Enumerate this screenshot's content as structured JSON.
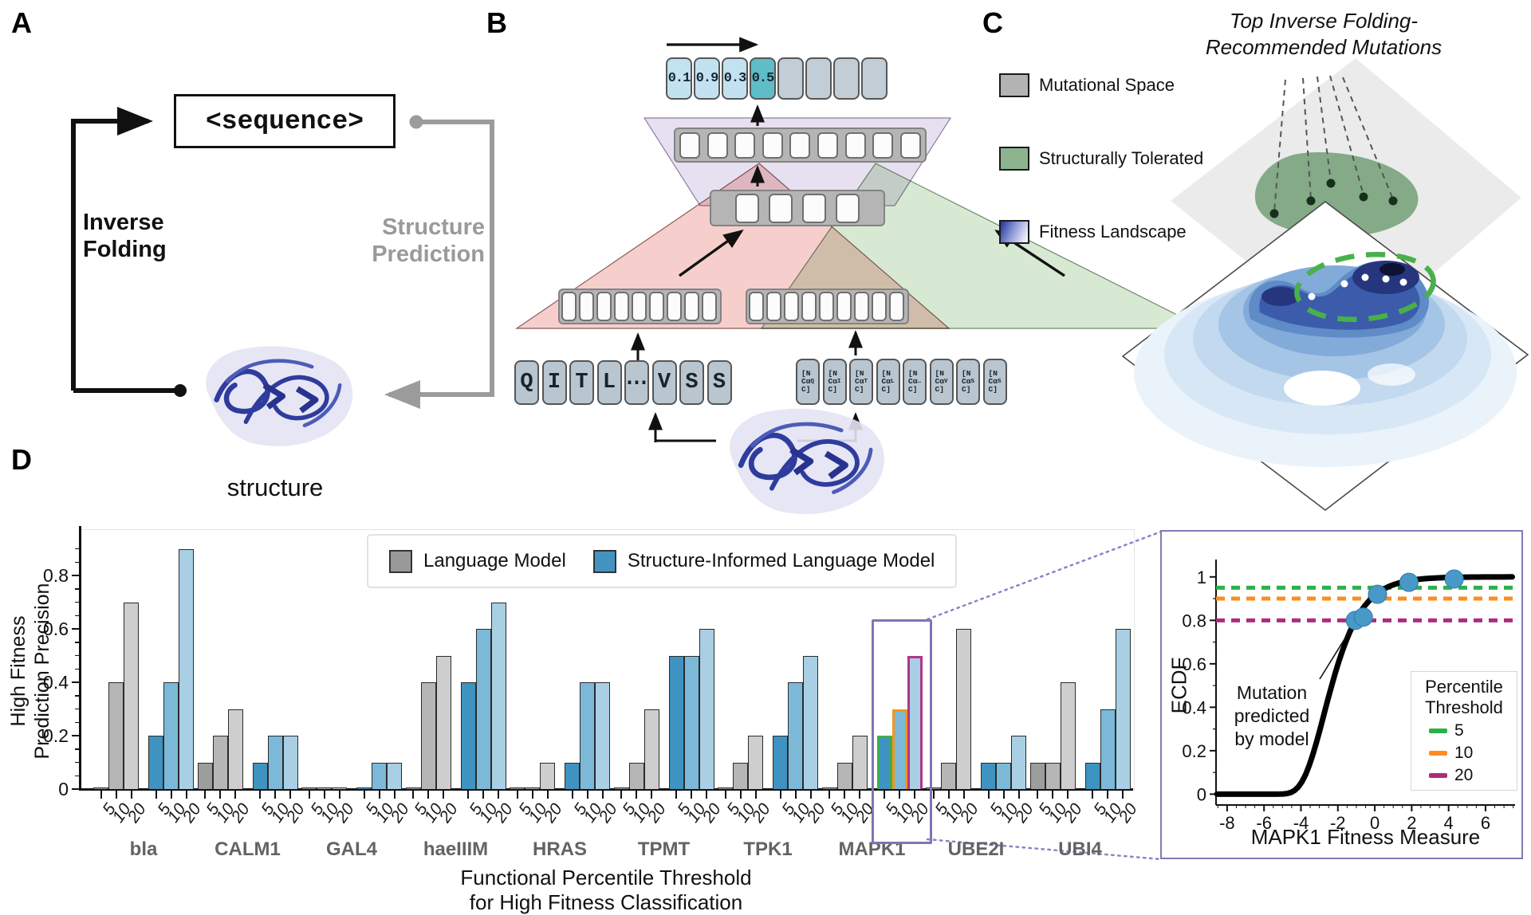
{
  "panels": {
    "a": "A",
    "b": "B",
    "c": "C",
    "d": "D"
  },
  "panel_a": {
    "sequence_box": "<sequence>",
    "inverse_folding": [
      "Inverse",
      "Folding"
    ],
    "structure_prediction": [
      "Structure",
      "Prediction"
    ],
    "structure_label": "structure"
  },
  "panel_b": {
    "output_values": [
      "0.1",
      "0.9",
      "0.3",
      "0.5"
    ],
    "output_empty_count": 4,
    "sequence_tokens": [
      "Q",
      "I",
      "T",
      "L",
      "⋯",
      "V",
      "S",
      "S"
    ],
    "structure_token_lines": [
      "[N",
      "Cα",
      "C]"
    ],
    "structure_token_subscripts": [
      "Q",
      "I",
      "T",
      "L",
      "…",
      "V",
      "S",
      "S"
    ]
  },
  "panel_c": {
    "title_lines": [
      "Top Inverse Folding-",
      "Recommended Mutations"
    ],
    "legend": [
      {
        "label": "Mutational Space",
        "color": "#b3b3b3"
      },
      {
        "label": "Structurally Tolerated",
        "color": "#8db48e"
      },
      {
        "label": "Fitness Landscape",
        "color": "gradient-blue-white"
      }
    ]
  },
  "chart_data": [
    {
      "type": "bar",
      "title": "",
      "xlabel_lines": [
        "Functional Percentile Threshold",
        "for High Fitness Classification"
      ],
      "ylabel_lines": [
        "High Fitness",
        "Prediction Precision"
      ],
      "ylim": [
        0,
        0.96
      ],
      "yticks": [
        0,
        0.2,
        0.4,
        0.6,
        0.8
      ],
      "ytick_labels": [
        "0",
        "0.2",
        "0.4",
        "0.6",
        "0.8"
      ],
      "thresholds": [
        "5",
        "10",
        "20"
      ],
      "categories": [
        "bla",
        "CALM1",
        "GAL4",
        "haeIIIM",
        "HRAS",
        "TPMT",
        "TPK1",
        "MAPK1",
        "UBE2I",
        "UBI4"
      ],
      "series": [
        {
          "name": "Language Model",
          "colors": [
            "#9d9d9d",
            "#b6b6b6",
            "#cecece"
          ],
          "values": [
            [
              0,
              0.4,
              0.7
            ],
            [
              0.1,
              0.2,
              0.3
            ],
            [
              0,
              0,
              0
            ],
            [
              0,
              0.4,
              0.5
            ],
            [
              0,
              0,
              0.1
            ],
            [
              0,
              0.1,
              0.3
            ],
            [
              0,
              0.1,
              0.2
            ],
            [
              0,
              0.1,
              0.2
            ],
            [
              0,
              0.1,
              0.6
            ],
            [
              0.1,
              0.1,
              0.4
            ]
          ]
        },
        {
          "name": "Structure-Informed Language Model",
          "colors": [
            "#3e93c0",
            "#7cb9d8",
            "#a8cfe4"
          ],
          "values": [
            [
              0.2,
              0.4,
              0.9
            ],
            [
              0.1,
              0.2,
              0.2
            ],
            [
              0,
              0.1,
              0.1
            ],
            [
              0.4,
              0.6,
              0.7
            ],
            [
              0.1,
              0.4,
              0.4
            ],
            [
              0.5,
              0.5,
              0.6
            ],
            [
              0.2,
              0.4,
              0.5
            ],
            [
              0.2,
              0.3,
              0.5
            ],
            [
              0.1,
              0.1,
              0.2
            ],
            [
              0.1,
              0.3,
              0.6
            ]
          ]
        }
      ],
      "highlight": {
        "category": "MAPK1",
        "series": "Structure-Informed Language Model",
        "outline_colors": [
          "#3fae48",
          "#f7941d",
          "#b23488"
        ]
      },
      "legend_labels": [
        "Language Model",
        "Structure-Informed Language Model"
      ]
    },
    {
      "type": "line",
      "xlabel": "MAPK1 Fitness Measure",
      "ylabel": "ECDF",
      "xlim": [
        -8.6,
        7.6
      ],
      "xticks": [
        -8,
        -6,
        -4,
        -2,
        0,
        2,
        4,
        6
      ],
      "ylim": [
        -0.05,
        1.08
      ],
      "yticks": [
        0,
        0.2,
        0.4,
        0.6,
        0.8,
        1
      ],
      "ytick_labels": [
        "0",
        "0.2",
        "0.4",
        "0.6",
        "0.8",
        "1"
      ],
      "curve": {
        "name": "ECDF sigmoid",
        "gompertz_k": 0.88,
        "gompertz_mid": -2.75
      },
      "threshold_lines": [
        {
          "label": "5",
          "y": 0.95,
          "color": "#2db04b"
        },
        {
          "label": "10",
          "y": 0.9,
          "color": "#ff8c1e"
        },
        {
          "label": "20",
          "y": 0.8,
          "color": "#aa2d7d"
        }
      ],
      "points": [
        [
          -1.05,
          0.8
        ],
        [
          -0.62,
          0.815
        ],
        [
          0.15,
          0.92
        ],
        [
          1.85,
          0.975
        ],
        [
          4.3,
          0.99
        ]
      ],
      "point_color": "#4898c8",
      "annotation": "Mutation\npredicted\nby model",
      "legend_title_lines": [
        "Percentile",
        "Threshold"
      ]
    }
  ]
}
